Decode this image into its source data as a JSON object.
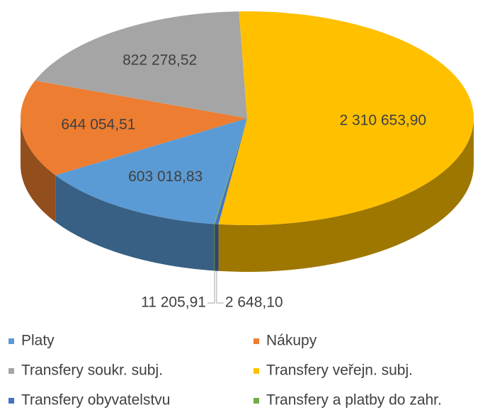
{
  "chart_data": {
    "type": "pie3d",
    "categories": [
      "Platy",
      "Nákupy",
      "Transfery soukr. subj.",
      "Transfery veřejn. subj.",
      "Transfery obyvatelstvu",
      "Transfery a platby do zahr."
    ],
    "values": [
      603018.83,
      644054.51,
      822278.52,
      2310653.9,
      11205.91,
      2648.1
    ],
    "value_labels": [
      "603 018,83",
      "644 054,51",
      "822 278,52",
      "2 310 653,90",
      "11 205,91",
      "2 648,10"
    ],
    "colors": [
      "#5b9bd5",
      "#ed7d31",
      "#a5a5a5",
      "#ffc000",
      "#4472c4",
      "#70ad47"
    ],
    "legend": "bottom"
  }
}
